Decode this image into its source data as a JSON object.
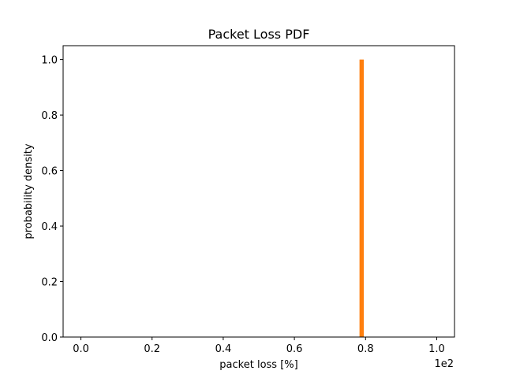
{
  "chart_data": {
    "type": "bar",
    "title": "Packet Loss PDF",
    "xlabel": "packet loss [%]",
    "ylabel": "probability density",
    "x_offset_text": "1e2",
    "xlim": [
      -0.05,
      1.05
    ],
    "ylim": [
      0,
      1.05
    ],
    "xticks": [
      0.0,
      0.2,
      0.4,
      0.6,
      0.8,
      1.0
    ],
    "xtick_labels": [
      "0.0",
      "0.2",
      "0.4",
      "0.6",
      "0.8",
      "1.0"
    ],
    "yticks": [
      0.0,
      0.2,
      0.4,
      0.6,
      0.8,
      1.0
    ],
    "ytick_labels": [
      "0.0",
      "0.2",
      "0.4",
      "0.6",
      "0.8",
      "1.0"
    ],
    "grid": false,
    "bars": [
      {
        "x_start": 0.783,
        "x_end": 0.795,
        "value": 1.0
      }
    ],
    "bar_color": "#ff7f0e"
  }
}
